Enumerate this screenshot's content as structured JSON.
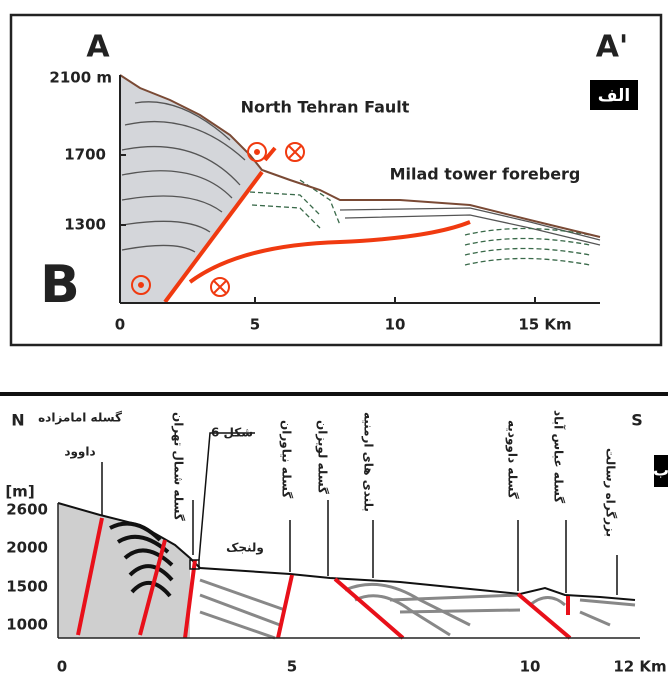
{
  "top_section": {
    "left_label": "A",
    "right_label": "A'",
    "panel_letter": "B",
    "tag": "الف",
    "fault_label": "North Tehran Fault",
    "foreberg_label": "Milad tower foreberg",
    "y_axis_labels": [
      "2100 m",
      "1700",
      "1300"
    ],
    "x_axis_labels": [
      "0",
      "5",
      "10",
      "15 Km"
    ]
  },
  "bottom_section": {
    "north": "N",
    "south": "S",
    "tag": "ب",
    "unit": "[m]",
    "y_axis_labels": [
      "2600",
      "2000",
      "1500",
      "1000"
    ],
    "x_axis_labels": [
      "0",
      "5",
      "10",
      "12 Km"
    ],
    "labels": {
      "emamzadeh_1": "گسله امامزاده",
      "emamzadeh_2": "داوود",
      "north_tehran": "گسله شمال تهران",
      "figure_6": "شکل 6",
      "velenjak": "ولنجک",
      "niavaran": "گسله نیاوران",
      "lavizan": "گسله لویزان",
      "armanieh": "بلندی های ارمنیه",
      "davoodieh": "گسله داوودیه",
      "abbasabad": "گسله عباس آباد",
      "resalat": "بزرگراه رسالت"
    }
  }
}
